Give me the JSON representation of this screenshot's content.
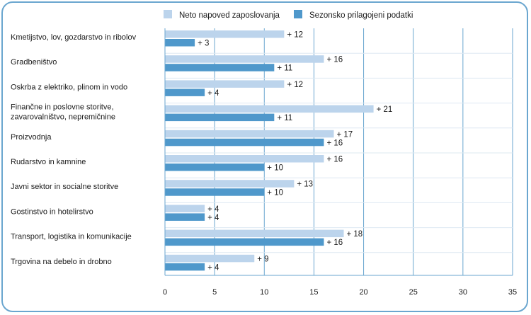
{
  "chart_data": {
    "type": "bar",
    "orientation": "horizontal",
    "categories": [
      [
        "Kmetijstvo, lov, gozdarstvo in ribolov"
      ],
      [
        "Gradbeništvo"
      ],
      [
        "Oskrba z elektriko, plinom in vodo"
      ],
      [
        "Finančne in poslovne storitve,",
        "zavarovalništvo, nepremičnine"
      ],
      [
        "Proizvodnja"
      ],
      [
        "Rudarstvo in kamnine"
      ],
      [
        "Javni sektor in socialne storitve"
      ],
      [
        "Gostinstvo in hotelirstvo"
      ],
      [
        "Transport, logistika in komunikacije"
      ],
      [
        "Trgovina na debelo in drobno"
      ]
    ],
    "series": [
      {
        "name": "Neto napoved zaposlovanja",
        "color": "#bcd4ec",
        "values": [
          12,
          16,
          12,
          21,
          17,
          16,
          13,
          4,
          18,
          9
        ],
        "labels": [
          "+ 12",
          "+ 16",
          "+ 12",
          "+ 21",
          "+ 17",
          "+ 16",
          "+ 13",
          "+ 4",
          "+ 18",
          "+ 9"
        ]
      },
      {
        "name": "Sezonsko prilagojeni podatki",
        "color": "#4f98cb",
        "values": [
          3,
          11,
          4,
          11,
          16,
          10,
          10,
          4,
          16,
          4
        ],
        "labels": [
          "+ 3",
          "+ 11",
          "+ 4",
          "+ 11",
          "+ 16",
          "+ 10",
          "+ 10",
          "+ 4",
          "+ 16",
          "+ 4"
        ]
      }
    ],
    "x_ticks": [
      "0",
      "5",
      "10",
      "15",
      "20",
      "25",
      "30",
      "35"
    ],
    "xlim": [
      0,
      35
    ],
    "grid": true,
    "legend_position": "top-right"
  }
}
